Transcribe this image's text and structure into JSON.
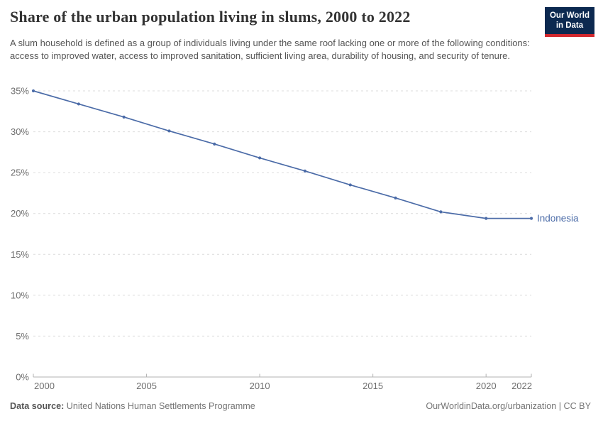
{
  "header": {
    "title": "Share of the urban population living in slums, 2000 to 2022",
    "subtitle": "A slum household is defined as a group of individuals living under the same roof lacking one or more of the following conditions: access to improved water, access to improved sanitation, sufficient living area, durability of housing, and security of tenure.",
    "logo": {
      "line1": "Our World",
      "line2": "in Data"
    }
  },
  "chart_data": {
    "type": "line",
    "title": "Share of the urban population living in slums, 2000 to 2022",
    "series": [
      {
        "name": "Indonesia",
        "x": [
          2000,
          2002,
          2004,
          2006,
          2008,
          2010,
          2012,
          2014,
          2016,
          2018,
          2020,
          2022
        ],
        "values": [
          35.0,
          33.4,
          31.8,
          30.1,
          28.5,
          26.8,
          25.2,
          23.5,
          21.9,
          20.2,
          19.4,
          19.4
        ]
      }
    ],
    "xlim": [
      2000,
      2022
    ],
    "ylim": [
      0,
      35
    ],
    "x_ticks": [
      2000,
      2005,
      2010,
      2015,
      2020,
      2022
    ],
    "x_tick_labels": [
      "2000",
      "2005",
      "2010",
      "2015",
      "2020",
      "2022"
    ],
    "y_ticks": [
      0,
      5,
      10,
      15,
      20,
      25,
      30,
      35
    ],
    "y_tick_labels": [
      "0%",
      "5%",
      "10%",
      "15%",
      "20%",
      "25%",
      "30%",
      "35%"
    ],
    "grid": "horizontal-dashed",
    "legend_position": "end-of-line",
    "xlabel": "",
    "ylabel": ""
  },
  "colors": {
    "line": "#4C6CA8",
    "grid": "#dcdcdc",
    "axis": "#b3b3b3",
    "tick_label": "#6e6e6e",
    "logo_bg": "#0C2950",
    "logo_accent": "#D2282E"
  },
  "footer": {
    "data_source_label": "Data source:",
    "data_source_value": "United Nations Human Settlements Programme",
    "credit": "OurWorldinData.org/urbanization | CC BY"
  }
}
